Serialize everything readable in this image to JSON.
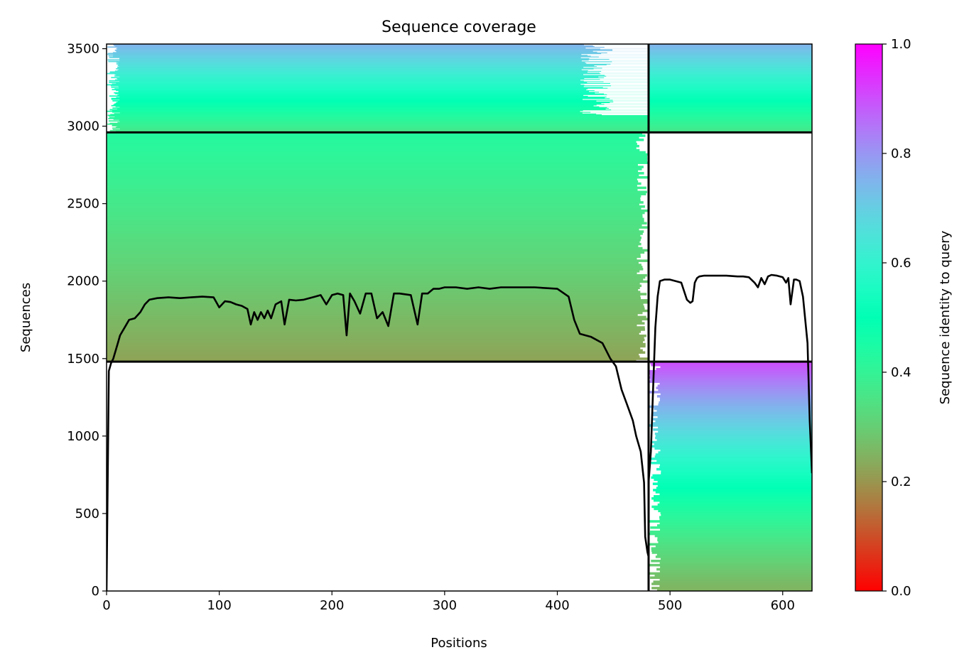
{
  "chart_data": {
    "type": "heatmap",
    "title": "Sequence coverage",
    "xlabel": "Positions",
    "ylabel": "Sequences",
    "xlim": [
      0,
      626
    ],
    "ylim": [
      0,
      3530
    ],
    "x_ticks": [
      0,
      100,
      200,
      300,
      400,
      500,
      600
    ],
    "y_ticks": [
      0,
      500,
      1000,
      1500,
      2000,
      2500,
      3000,
      3500
    ],
    "colorbar": {
      "label": "Sequence identity to query",
      "range": [
        0,
        1
      ],
      "ticks": [
        "0.0",
        "0.2",
        "0.4",
        "0.6",
        "0.8",
        "1.0"
      ],
      "colormap": "rainbow_r"
    },
    "chain_boundaries": {
      "x": [
        481
      ],
      "y": [
        1480,
        2960
      ]
    },
    "blocks": [
      {
        "name": "chain A alignments",
        "x_range": [
          0,
          481
        ],
        "y_range": [
          1480,
          2960
        ],
        "identity_bottom": 0.22,
        "identity_top": 0.43,
        "ragged_right_start": 470
      },
      {
        "name": "chain B alignments",
        "x_range": [
          481,
          626
        ],
        "y_range": [
          0,
          1480
        ],
        "identity_bottom": 0.25,
        "identity_top": 0.9,
        "ragged_left_end": 492
      },
      {
        "name": "paired alignments",
        "x_range": [
          0,
          626
        ],
        "y_range": [
          2960,
          3530
        ],
        "identity_bottom": 0.36,
        "identity_top": 0.75,
        "ragged_left_end": 12,
        "gap_x_range": [
          420,
          481
        ]
      }
    ],
    "coverage": {
      "x": [
        0,
        2,
        4,
        6,
        8,
        10,
        12,
        16,
        20,
        25,
        30,
        34,
        38,
        45,
        55,
        65,
        75,
        85,
        95,
        100,
        105,
        110,
        115,
        120,
        125,
        128,
        131,
        134,
        137,
        140,
        143,
        146,
        150,
        155,
        158,
        162,
        168,
        175,
        185,
        190,
        195,
        200,
        205,
        210,
        213,
        216,
        220,
        225,
        230,
        235,
        240,
        245,
        250,
        255,
        260,
        270,
        276,
        280,
        285,
        290,
        295,
        300,
        310,
        320,
        330,
        340,
        350,
        360,
        370,
        380,
        390,
        400,
        410,
        415,
        420,
        425,
        430,
        440,
        447,
        452,
        457,
        462,
        467,
        470,
        474,
        477,
        478,
        480,
        481
      ],
      "y": [
        0,
        1420,
        1470,
        1500,
        1550,
        1600,
        1650,
        1700,
        1750,
        1760,
        1800,
        1850,
        1880,
        1890,
        1895,
        1890,
        1895,
        1900,
        1895,
        1830,
        1870,
        1865,
        1850,
        1840,
        1820,
        1720,
        1800,
        1750,
        1800,
        1760,
        1810,
        1760,
        1850,
        1870,
        1720,
        1880,
        1875,
        1880,
        1900,
        1910,
        1850,
        1910,
        1920,
        1910,
        1650,
        1920,
        1870,
        1790,
        1920,
        1920,
        1760,
        1800,
        1710,
        1920,
        1920,
        1910,
        1720,
        1920,
        1920,
        1950,
        1950,
        1960,
        1960,
        1950,
        1960,
        1950,
        1960,
        1960,
        1960,
        1960,
        1955,
        1950,
        1900,
        1750,
        1660,
        1650,
        1640,
        1600,
        1500,
        1450,
        1300,
        1200,
        1100,
        1000,
        900,
        700,
        350,
        250,
        220
      ]
    },
    "coverage_b": {
      "x": [
        481,
        483,
        485,
        487,
        489,
        491,
        495,
        500,
        505,
        510,
        515,
        518,
        520,
        522,
        524,
        526,
        530,
        540,
        550,
        560,
        565,
        570,
        575,
        578,
        581,
        584,
        587,
        590,
        595,
        600,
        603,
        605,
        607,
        610,
        612,
        615,
        618,
        620,
        622,
        624,
        626
      ],
      "y": [
        700,
        900,
        1300,
        1700,
        1900,
        2000,
        2010,
        2010,
        2000,
        1990,
        1880,
        1860,
        1870,
        1990,
        2020,
        2030,
        2035,
        2035,
        2035,
        2030,
        2030,
        2025,
        1990,
        1960,
        2020,
        1980,
        2030,
        2040,
        2035,
        2025,
        1990,
        2020,
        1850,
        2010,
        2010,
        2000,
        1900,
        1750,
        1600,
        1100,
        760
      ]
    }
  }
}
